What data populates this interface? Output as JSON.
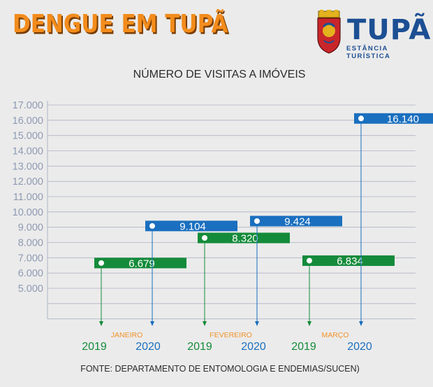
{
  "header": {
    "headline": "DENGUE EM TUPÃ",
    "logo_word": "TUPÃ",
    "logo_subtitle": "ESTÂNCIA TURÍSTICA"
  },
  "source": "FONTE: DEPARTAMENTO DE ENTOMOLOGIA E ENDEMIAS/SUCEN)",
  "colors": {
    "s2019": "#148b3a",
    "s2020": "#1a6fbf",
    "month": "#f0922a",
    "axis": "#8e9ab3",
    "grid": "#aeb4c6"
  },
  "chart_data": {
    "type": "bar",
    "title": "NÚMERO DE VISITAS A IMÓVEIS",
    "categories": [
      "JANEIRO",
      "FEVEREIRO",
      "MARÇO"
    ],
    "series": [
      {
        "name": "2019",
        "values": [
          6679,
          8320,
          6834
        ],
        "labels": [
          "6.679",
          "8.320",
          "6.834"
        ]
      },
      {
        "name": "2020",
        "values": [
          9104,
          9424,
          16140
        ],
        "labels": [
          "9.104",
          "9.424",
          "16.140"
        ]
      }
    ],
    "yticks": [
      5000,
      6000,
      7000,
      8000,
      9000,
      10000,
      11000,
      12000,
      13000,
      14000,
      15000,
      16000,
      17000
    ],
    "ytick_labels": [
      "5.000",
      "6.000",
      "7.000",
      "8.000",
      "9.000",
      "10.000",
      "11.000",
      "12.000",
      "13.000",
      "14.000",
      "15.000",
      "16.000",
      "17.000"
    ],
    "ylim": [
      3000,
      17000
    ],
    "grid": true
  }
}
